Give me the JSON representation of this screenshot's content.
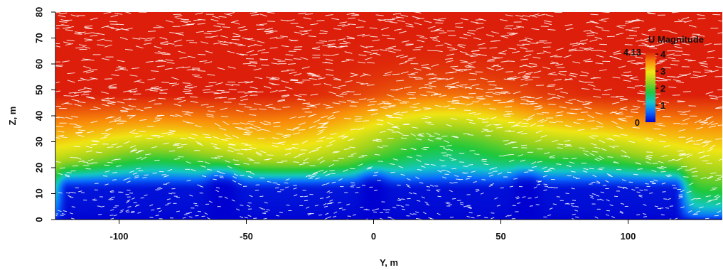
{
  "chart_data": {
    "type": "heatmap",
    "title": "",
    "xlabel": "Y, m",
    "ylabel": "Z, m",
    "xlim": [
      -125,
      137
    ],
    "ylim": [
      0,
      80
    ],
    "x_ticks": [
      -100,
      -50,
      0,
      50,
      100
    ],
    "y_ticks": [
      0,
      10,
      20,
      30,
      40,
      50,
      60,
      70,
      80
    ],
    "colorbar": {
      "label": "U Magnitude",
      "min": 0,
      "max": 4.13,
      "min_label": "0",
      "max_label": "4.13",
      "ticks": [
        1,
        2,
        3,
        4
      ],
      "colors": [
        "#0000d0",
        "#0a6cff",
        "#14c8c8",
        "#1ec83c",
        "#9ad21e",
        "#f0e614",
        "#fa8c0a",
        "#dc1e0a"
      ]
    },
    "field": {
      "quantity": "U Magnitude",
      "vectors_color": "#ffffff",
      "buildings": [
        {
          "y_from": -114,
          "y_to": -64
        },
        {
          "y_from": -55,
          "y_to": -5
        },
        {
          "y_from": 5,
          "y_to": 55
        },
        {
          "y_from": 65,
          "y_to": 112
        }
      ],
      "building_height": 11
    }
  }
}
